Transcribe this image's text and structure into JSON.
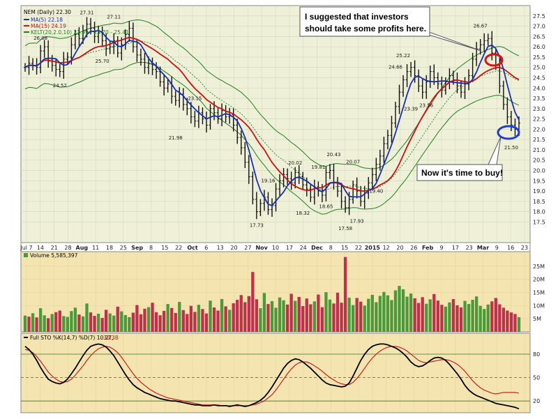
{
  "legend": {
    "symbol": "NEM (Daily) 22.30",
    "ma5": "MA(5) 22.18",
    "ma15": "MA(15) 24.19",
    "kelt": "KELT(20,2.0,10) 21.99 - 23.70 - 25.41",
    "volume": "Volume 5,585,397",
    "sto": "Full STO %K(14,7) %D(7) 10.27,",
    "sto_d": "30.38"
  },
  "annotations": {
    "profits": {
      "line1": "I suggested that investors",
      "line2": "should take some profits here."
    },
    "buy": {
      "text": "Now  it's time to buy!"
    }
  },
  "colors": {
    "price_panel": "#eef0d8",
    "sub_panel": "#f4e4b0",
    "ma5": "#1a2db5",
    "ma15": "#d01010",
    "keltner": "#208020",
    "volume_up": "#4a9a3a",
    "volume_down": "#c0304a",
    "sell_circle": "#e01010",
    "buy_circle": "#1e3cd8"
  },
  "chart_data": [
    {
      "type": "line",
      "panel": "price",
      "ylim": [
        16.5,
        28.0
      ],
      "y_ticks": [
        17.5,
        18.0,
        18.5,
        19.0,
        19.5,
        20.0,
        20.5,
        21.0,
        21.5,
        22.0,
        22.5,
        23.0,
        23.5,
        24.0,
        24.5,
        25.0,
        25.5,
        26.0,
        26.5,
        27.0,
        27.5
      ],
      "x_labels": [
        "Jul 7",
        "14",
        "21",
        "28",
        "Aug",
        "11",
        "18",
        "25",
        "Sep",
        "8",
        "15",
        "22",
        "Oct",
        "6",
        "13",
        "20",
        "27",
        "Nov",
        "10",
        "17",
        "24",
        "Dec",
        "8",
        "15",
        "22",
        "2015",
        "12",
        "20",
        "26",
        "Feb",
        "9",
        "17",
        "23",
        "Mar",
        "9",
        "16",
        "23"
      ],
      "close": [
        25.0,
        25.2,
        25.1,
        25.0,
        25.8,
        26.0,
        25.3,
        25.1,
        24.9,
        24.8,
        25.4,
        25.5,
        26.1,
        26.6,
        26.4,
        26.8,
        27.1,
        26.9,
        26.5,
        26.7,
        26.3,
        25.9,
        26.0,
        26.3,
        25.7,
        26.1,
        26.6,
        26.9,
        26.0,
        25.6,
        25.4,
        25.0,
        25.2,
        24.9,
        24.8,
        24.3,
        24.0,
        24.2,
        23.6,
        23.4,
        23.7,
        23.2,
        23.0,
        22.6,
        22.4,
        22.8,
        22.5,
        22.2,
        23.0,
        22.8,
        22.5,
        22.9,
        22.6,
        22.7,
        22.2,
        21.6,
        21.1,
        20.4,
        19.7,
        18.6,
        18.0,
        18.4,
        18.7,
        18.1,
        18.3,
        19.1,
        19.5,
        19.8,
        19.6,
        19.4,
        19.9,
        19.7,
        19.3,
        19.1,
        18.7,
        19.2,
        19.0,
        18.8,
        19.9,
        20.0,
        19.4,
        19.0,
        18.5,
        18.2,
        18.6,
        19.3,
        19.0,
        18.5,
        18.9,
        19.4,
        19.8,
        20.3,
        20.7,
        21.3,
        21.7,
        22.3,
        23.1,
        23.8,
        24.4,
        24.8,
        25.0,
        24.6,
        24.1,
        23.8,
        24.3,
        24.8,
        24.5,
        24.2,
        23.9,
        24.3,
        24.6,
        24.4,
        24.1,
        23.8,
        24.2,
        24.6,
        25.4,
        25.9,
        26.1,
        26.3,
        26.4,
        25.7,
        25.1,
        24.1,
        23.2,
        22.6,
        22.2,
        22.0,
        22.3
      ],
      "high_low_labels": [
        {
          "label": "26.08",
          "i": 4,
          "v": 26.08,
          "pos": "above"
        },
        {
          "label": "24.52",
          "i": 9,
          "v": 24.52,
          "pos": "below"
        },
        {
          "label": "27.31",
          "i": 16,
          "v": 27.31,
          "pos": "above"
        },
        {
          "label": "25.70",
          "i": 20,
          "v": 25.7,
          "pos": "below"
        },
        {
          "label": "27.11",
          "i": 23,
          "v": 27.11,
          "pos": "above"
        },
        {
          "label": "23.15",
          "i": 44,
          "v": 23.15,
          "pos": "above"
        },
        {
          "label": "21.98",
          "i": 39,
          "v": 21.98,
          "pos": "below"
        },
        {
          "label": "19.16",
          "i": 63,
          "v": 19.16,
          "pos": "above"
        },
        {
          "label": "17.73",
          "i": 60,
          "v": 17.73,
          "pos": "below"
        },
        {
          "label": "20.02",
          "i": 70,
          "v": 20.02,
          "pos": "above"
        },
        {
          "label": "18.32",
          "i": 72,
          "v": 18.32,
          "pos": "below"
        },
        {
          "label": "19.81",
          "i": 76,
          "v": 19.81,
          "pos": "above"
        },
        {
          "label": "20.43",
          "i": 80,
          "v": 20.43,
          "pos": "above"
        },
        {
          "label": "18.65",
          "i": 78,
          "v": 18.65,
          "pos": "below"
        },
        {
          "label": "20.07",
          "i": 85,
          "v": 20.07,
          "pos": "above"
        },
        {
          "label": "17.58",
          "i": 83,
          "v": 17.58,
          "pos": "below"
        },
        {
          "label": "17.93",
          "i": 86,
          "v": 17.93,
          "pos": "below"
        },
        {
          "label": "19.40",
          "i": 91,
          "v": 19.4,
          "pos": "below"
        },
        {
          "label": "25.22",
          "i": 98,
          "v": 25.22,
          "pos": "above"
        },
        {
          "label": "24.66",
          "i": 96,
          "v": 24.66,
          "pos": "above"
        },
        {
          "label": "23.39",
          "i": 100,
          "v": 23.39,
          "pos": "below"
        },
        {
          "label": "23.56",
          "i": 104,
          "v": 23.56,
          "pos": "below"
        },
        {
          "label": "26.67",
          "i": 118,
          "v": 26.67,
          "pos": "above"
        },
        {
          "label": "21.50",
          "i": 126,
          "v": 21.5,
          "pos": "below"
        }
      ]
    },
    {
      "type": "bar",
      "panel": "volume",
      "ylim": [
        0,
        30
      ],
      "y_ticks": [
        5,
        10,
        15,
        20,
        25
      ],
      "y_tick_labels": [
        "5M",
        "10M",
        "15M",
        "20M",
        "25M"
      ],
      "values": [
        6.2,
        5.8,
        7.1,
        5.5,
        9.0,
        6.3,
        5.2,
        6.8,
        7.5,
        8.1,
        6.0,
        5.7,
        7.9,
        9.2,
        6.6,
        5.9,
        10.8,
        7.4,
        6.1,
        6.9,
        5.3,
        8.4,
        7.0,
        6.2,
        9.6,
        7.8,
        6.4,
        5.6,
        7.3,
        10.2,
        6.7,
        8.8,
        9.4,
        11.1,
        7.5,
        6.3,
        8.0,
        10.6,
        9.1,
        7.2,
        11.4,
        8.3,
        6.8,
        9.9,
        7.6,
        10.3,
        8.7,
        7.0,
        11.9,
        9.3,
        8.1,
        12.5,
        9.7,
        8.4,
        10.9,
        12.2,
        14.0,
        11.3,
        13.6,
        22.8,
        12.4,
        9.0,
        14.8,
        10.6,
        11.7,
        9.2,
        13.1,
        12.0,
        10.4,
        14.5,
        11.8,
        13.3,
        9.8,
        12.7,
        10.5,
        11.6,
        14.2,
        9.4,
        15.1,
        12.3,
        10.8,
        14.9,
        11.1,
        28.5,
        13.0,
        10.2,
        12.9,
        11.5,
        10.0,
        12.6,
        14.1,
        11.3,
        13.7,
        15.2,
        13.9,
        12.1,
        15.8,
        17.5,
        16.2,
        13.4,
        14.6,
        12.8,
        11.0,
        13.2,
        10.7,
        12.4,
        14.4,
        11.9,
        10.3,
        9.6,
        11.2,
        12.5,
        10.1,
        9.3,
        11.8,
        10.6,
        12.2,
        13.5,
        9.9,
        8.7,
        10.4,
        11.6,
        12.9,
        10.5,
        9.2,
        8.1,
        7.4,
        6.8,
        5.6
      ],
      "up": [
        1,
        0,
        1,
        0,
        1,
        1,
        0,
        1,
        0,
        0,
        1,
        1,
        1,
        1,
        0,
        1,
        1,
        0,
        0,
        1,
        0,
        0,
        1,
        1,
        0,
        1,
        1,
        1,
        0,
        0,
        0,
        0,
        1,
        0,
        0,
        0,
        0,
        1,
        0,
        0,
        1,
        0,
        0,
        0,
        0,
        1,
        0,
        0,
        1,
        0,
        0,
        1,
        0,
        1,
        0,
        0,
        0,
        0,
        0,
        0,
        0,
        1,
        1,
        0,
        1,
        1,
        1,
        1,
        0,
        0,
        1,
        0,
        0,
        0,
        0,
        1,
        0,
        0,
        1,
        1,
        0,
        0,
        0,
        0,
        1,
        1,
        0,
        0,
        1,
        1,
        1,
        1,
        1,
        1,
        1,
        1,
        1,
        1,
        1,
        1,
        1,
        0,
        0,
        0,
        1,
        1,
        0,
        0,
        0,
        1,
        1,
        0,
        0,
        0,
        1,
        1,
        1,
        1,
        1,
        1,
        1,
        0,
        0,
        0,
        0,
        0,
        0,
        0,
        1
      ]
    },
    {
      "type": "line",
      "panel": "stochastic",
      "ylim": [
        5,
        105
      ],
      "y_ticks": [
        20,
        50,
        80
      ],
      "series": [
        {
          "name": "%K(14,7)",
          "values": [
            90,
            86,
            80,
            72,
            63,
            55,
            48,
            45,
            43,
            42,
            44,
            48,
            55,
            62,
            70,
            78,
            85,
            90,
            92,
            93,
            92,
            89,
            84,
            78,
            70,
            62,
            54,
            47,
            41,
            37,
            34,
            31,
            29,
            27,
            25,
            23,
            22,
            21,
            20,
            20,
            19,
            18,
            17,
            16,
            15,
            15,
            14,
            14,
            14,
            15,
            14,
            14,
            14,
            13,
            14,
            15,
            14,
            13,
            14,
            16,
            18,
            21,
            25,
            31,
            38,
            46,
            54,
            62,
            68,
            72,
            74,
            73,
            70,
            66,
            62,
            57,
            52,
            47,
            43,
            41,
            40,
            39,
            38,
            39,
            43,
            52,
            62,
            72,
            80,
            86,
            90,
            92,
            93,
            93,
            92,
            90,
            88,
            85,
            81,
            76,
            70,
            66,
            64,
            65,
            68,
            72,
            75,
            76,
            75,
            72,
            67,
            61,
            55,
            48,
            40,
            34,
            30,
            27,
            25,
            23,
            21,
            19,
            17,
            16,
            15,
            14,
            13,
            12,
            10
          ]
        },
        {
          "name": "%D(7)",
          "values": [
            86,
            85,
            82,
            77,
            71,
            64,
            57,
            52,
            48,
            45,
            44,
            45,
            48,
            53,
            59,
            65,
            72,
            78,
            83,
            87,
            89,
            90,
            89,
            86,
            82,
            76,
            69,
            62,
            55,
            49,
            44,
            40,
            36,
            33,
            30,
            28,
            26,
            24,
            23,
            22,
            21,
            20,
            19,
            18,
            17,
            16,
            15,
            15,
            15,
            15,
            15,
            14,
            14,
            14,
            14,
            14,
            14,
            14,
            14,
            15,
            16,
            18,
            20,
            24,
            28,
            34,
            41,
            48,
            55,
            61,
            66,
            69,
            70,
            70,
            68,
            65,
            62,
            58,
            54,
            50,
            47,
            44,
            42,
            41,
            41,
            44,
            49,
            55,
            62,
            69,
            75,
            80,
            84,
            87,
            89,
            90,
            90,
            89,
            87,
            84,
            80,
            76,
            72,
            70,
            69,
            70,
            71,
            72,
            73,
            73,
            72,
            70,
            67,
            63,
            58,
            52,
            46,
            41,
            37,
            34,
            32,
            30,
            29,
            30,
            31,
            31,
            31,
            31,
            30
          ]
        }
      ]
    }
  ]
}
